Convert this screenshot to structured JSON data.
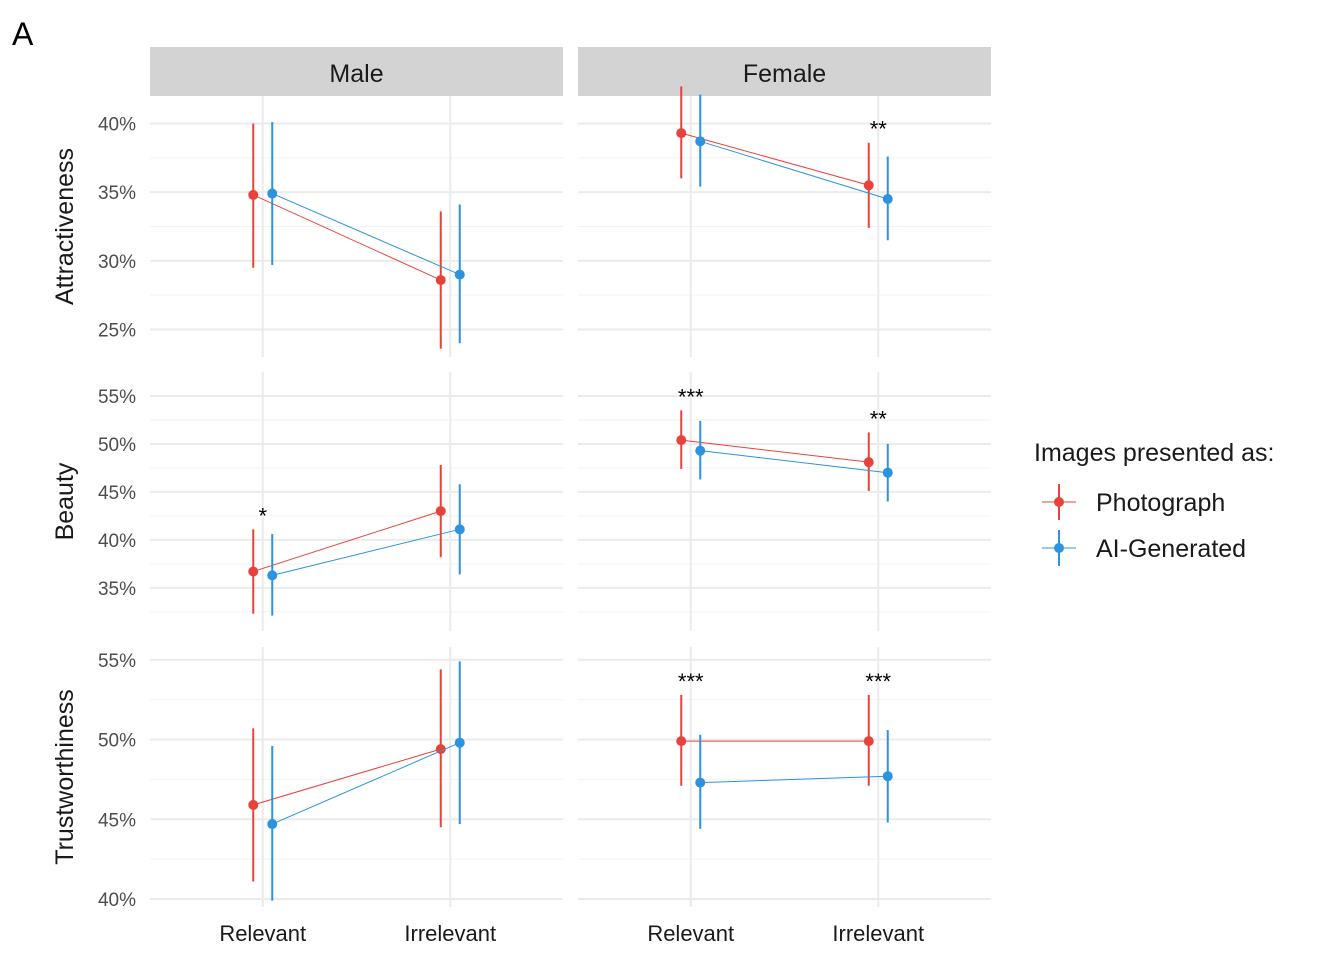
{
  "panel_label": "A",
  "legend": {
    "title": "Images presented as:",
    "entries": [
      {
        "label": "Photograph",
        "color": "#E8433A"
      },
      {
        "label": "AI-Generated",
        "color": "#2B93E0"
      }
    ]
  },
  "chart_data": {
    "type": "line",
    "facet_columns": [
      "Male",
      "Female"
    ],
    "categories": [
      "Relevant",
      "Irrelevant"
    ],
    "rows": [
      {
        "label": "Attractiveness",
        "ylim": [
          23,
          42
        ],
        "yticks": [
          25,
          30,
          35,
          40
        ],
        "ytick_labels": [
          "25%",
          "30%",
          "35%",
          "40%"
        ],
        "panels": [
          {
            "column": "Male",
            "series": [
              {
                "name": "Photograph",
                "values": [
                  34.8,
                  28.6
                ],
                "lower": [
                  29.5,
                  23.6
                ],
                "upper": [
                  40.0,
                  33.6
                ]
              },
              {
                "name": "AI-Generated",
                "values": [
                  34.9,
                  29.0
                ],
                "lower": [
                  29.7,
                  24.0
                ],
                "upper": [
                  40.1,
                  34.1
                ]
              }
            ],
            "significance": [
              "",
              ""
            ]
          },
          {
            "column": "Female",
            "series": [
              {
                "name": "Photograph",
                "values": [
                  39.3,
                  35.5
                ],
                "lower": [
                  36.0,
                  32.4
                ],
                "upper": [
                  42.7,
                  38.6
                ]
              },
              {
                "name": "AI-Generated",
                "values": [
                  38.7,
                  34.5
                ],
                "lower": [
                  35.4,
                  31.5
                ],
                "upper": [
                  42.1,
                  37.6
                ]
              }
            ],
            "significance": [
              "",
              "**"
            ]
          }
        ]
      },
      {
        "label": "Beauty",
        "ylim": [
          30.5,
          57.5
        ],
        "yticks": [
          35,
          40,
          45,
          50,
          55
        ],
        "ytick_labels": [
          "35%",
          "40%",
          "45%",
          "50%",
          "55%"
        ],
        "panels": [
          {
            "column": "Male",
            "series": [
              {
                "name": "Photograph",
                "values": [
                  36.7,
                  43.0
                ],
                "lower": [
                  32.3,
                  38.2
                ],
                "upper": [
                  41.1,
                  47.8
                ]
              },
              {
                "name": "AI-Generated",
                "values": [
                  36.3,
                  41.1
                ],
                "lower": [
                  32.1,
                  36.4
                ],
                "upper": [
                  40.6,
                  45.8
                ]
              }
            ],
            "significance": [
              "*",
              ""
            ]
          },
          {
            "column": "Female",
            "series": [
              {
                "name": "Photograph",
                "values": [
                  50.4,
                  48.1
                ],
                "lower": [
                  47.4,
                  45.1
                ],
                "upper": [
                  53.5,
                  51.2
                ]
              },
              {
                "name": "AI-Generated",
                "values": [
                  49.3,
                  47.0
                ],
                "lower": [
                  46.3,
                  44.0
                ],
                "upper": [
                  52.4,
                  50.0
                ]
              }
            ],
            "significance": [
              "***",
              "**"
            ]
          }
        ]
      },
      {
        "label": "Trustworthiness",
        "ylim": [
          39.5,
          55.8
        ],
        "yticks": [
          40,
          45,
          50,
          55
        ],
        "ytick_labels": [
          "40%",
          "45%",
          "50%",
          "55%"
        ],
        "panels": [
          {
            "column": "Male",
            "series": [
              {
                "name": "Photograph",
                "values": [
                  45.9,
                  49.4
                ],
                "lower": [
                  41.1,
                  44.5
                ],
                "upper": [
                  50.7,
                  54.4
                ]
              },
              {
                "name": "AI-Generated",
                "values": [
                  44.7,
                  49.8
                ],
                "lower": [
                  39.9,
                  44.7
                ],
                "upper": [
                  49.6,
                  54.9
                ]
              }
            ],
            "significance": [
              "",
              ""
            ]
          },
          {
            "column": "Female",
            "series": [
              {
                "name": "Photograph",
                "values": [
                  49.9,
                  49.9
                ],
                "lower": [
                  47.1,
                  47.1
                ],
                "upper": [
                  52.8,
                  52.8
                ]
              },
              {
                "name": "AI-Generated",
                "values": [
                  47.3,
                  47.7
                ],
                "lower": [
                  44.4,
                  44.8
                ],
                "upper": [
                  50.3,
                  50.6
                ]
              }
            ],
            "significance": [
              "***",
              "***"
            ]
          }
        ]
      }
    ]
  }
}
